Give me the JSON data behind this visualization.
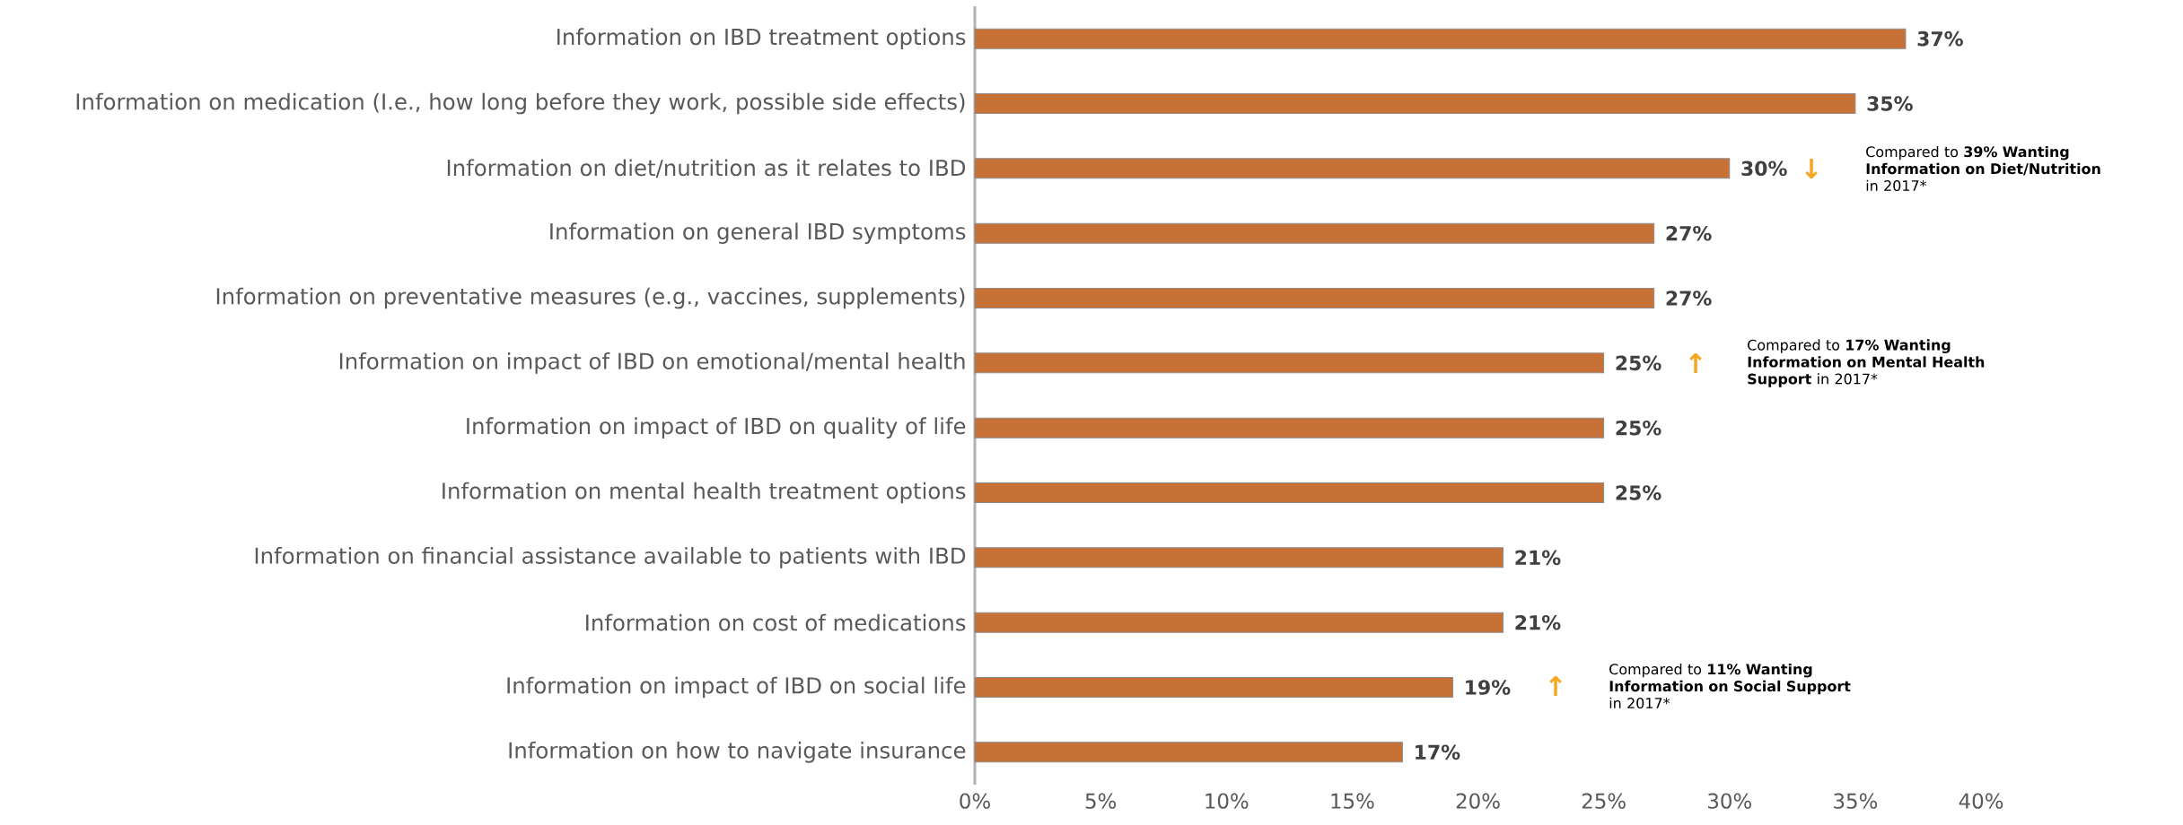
{
  "chart_data": {
    "type": "bar",
    "orientation": "horizontal",
    "categories": [
      "Information on IBD treatment options",
      "Information on medication (I.e., how long before they work, possible side effects)",
      "Information on diet/nutrition as it relates to IBD",
      "Information on general IBD symptoms",
      "Information on preventative measures (e.g., vaccines, supplements)",
      "Information on impact of IBD on emotional/mental health",
      "Information on impact of IBD on quality of life",
      "Information on mental health treatment options",
      "Information on financial assistance available to patients with IBD",
      "Information on cost of medications",
      "Information on impact of IBD on social life",
      "Information on how to navigate insurance"
    ],
    "values": [
      37,
      35,
      30,
      27,
      27,
      25,
      25,
      25,
      21,
      21,
      19,
      17
    ],
    "value_labels": [
      "37%",
      "35%",
      "30%",
      "27%",
      "27%",
      "25%",
      "25%",
      "25%",
      "21%",
      "21%",
      "19%",
      "17%"
    ],
    "color": "#c87137",
    "xlim": [
      0,
      40
    ],
    "xticks": [
      {
        "value": 0,
        "label": "0%"
      },
      {
        "value": 5,
        "label": "5%"
      },
      {
        "value": 10,
        "label": "10%"
      },
      {
        "value": 15,
        "label": "15%"
      },
      {
        "value": 20,
        "label": "20%"
      },
      {
        "value": 25,
        "label": "25%"
      },
      {
        "value": 30,
        "label": "30%"
      },
      {
        "value": 35,
        "label": "35%"
      },
      {
        "value": 40,
        "label": "40%"
      }
    ],
    "annotations": [
      "↓",
      "Compared to **39% Wanting Information on Diet/Nutrition** in 2017*",
      "↑",
      "Compared to **17% Wanting Information on Mental Health Support** in 2017*",
      "↑",
      "Compared to **11% Wanting Information on Social Support** in 2017*"
    ],
    "grid": false
  }
}
